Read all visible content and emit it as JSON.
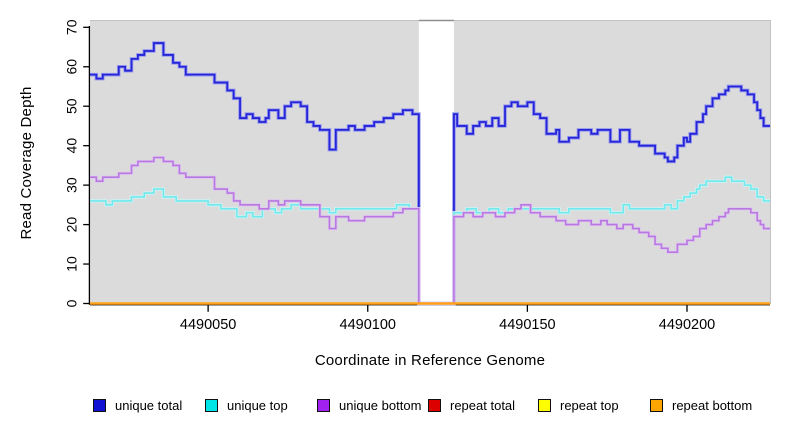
{
  "figure": {
    "x_title": "Coordinate in Reference Genome",
    "y_title": "Read Coverage Depth"
  },
  "legend": {
    "position": "bottom",
    "items": [
      {
        "label": "unique total",
        "color": "#1212D2"
      },
      {
        "label": "unique top",
        "color": "#00E5E5"
      },
      {
        "label": "unique bottom",
        "color": "#A121F0"
      },
      {
        "label": "repeat total",
        "color": "#DD0000"
      },
      {
        "label": "repeat top",
        "color": "#FFFF00"
      },
      {
        "label": "repeat bottom",
        "color": "#FFA500"
      }
    ]
  },
  "chart_data": {
    "type": "line",
    "subtype": "step",
    "title": "",
    "xlabel": "Coordinate in Reference Genome",
    "ylabel": "Read Coverage Depth",
    "xlim": [
      4490013,
      4490226
    ],
    "ylim": [
      0,
      70
    ],
    "x_ticks": [
      4490050,
      4490100,
      4490150,
      4490200
    ],
    "x_tick_labels": [
      "4490050",
      "4490100",
      "4490150",
      "4490200"
    ],
    "y_ticks": [
      0,
      10,
      20,
      30,
      40,
      50,
      60,
      70
    ],
    "y_tick_labels": [
      "0",
      "10",
      "20",
      "30",
      "40",
      "50",
      "60",
      "70"
    ],
    "plot_background": "#DBDBDB",
    "gap_region": {
      "from": 4490116,
      "to": 4490127,
      "color": "#FFFFFF"
    },
    "grid": false,
    "legend_position": "bottom",
    "series": [
      {
        "name": "unique total",
        "color": "#2525D8",
        "halo": "#9B9BEF",
        "width": 1.8,
        "halo_width": 3.6,
        "points": [
          [
            4490013,
            58
          ],
          [
            4490015,
            57
          ],
          [
            4490017,
            58
          ],
          [
            4490022,
            60
          ],
          [
            4490024,
            59
          ],
          [
            4490026,
            62
          ],
          [
            4490028,
            63
          ],
          [
            4490030,
            64
          ],
          [
            4490033,
            66
          ],
          [
            4490036,
            63
          ],
          [
            4490039,
            61
          ],
          [
            4490041,
            60
          ],
          [
            4490043,
            58
          ],
          [
            4490052,
            56
          ],
          [
            4490056,
            54
          ],
          [
            4490058,
            52
          ],
          [
            4490060,
            47
          ],
          [
            4490062,
            48
          ],
          [
            4490064,
            47
          ],
          [
            4490066,
            46
          ],
          [
            4490068,
            47
          ],
          [
            4490069,
            49
          ],
          [
            4490072,
            47
          ],
          [
            4490074,
            50
          ],
          [
            4490076,
            51
          ],
          [
            4490079,
            50
          ],
          [
            4490081,
            46
          ],
          [
            4490083,
            45
          ],
          [
            4490085,
            44
          ],
          [
            4490088,
            39
          ],
          [
            4490090,
            44
          ],
          [
            4490094,
            45
          ],
          [
            4490096,
            44
          ],
          [
            4490099,
            45
          ],
          [
            4490102,
            46
          ],
          [
            4490105,
            47
          ],
          [
            4490108,
            48
          ],
          [
            4490111,
            49
          ],
          [
            4490114,
            48
          ],
          [
            4490116,
            0
          ],
          [
            4490127,
            48
          ],
          [
            4490128,
            45
          ],
          [
            4490131,
            43
          ],
          [
            4490133,
            45
          ],
          [
            4490135,
            46
          ],
          [
            4490137,
            45
          ],
          [
            4490139,
            47
          ],
          [
            4490141,
            45
          ],
          [
            4490143,
            50
          ],
          [
            4490145,
            51
          ],
          [
            4490147,
            50
          ],
          [
            4490150,
            51
          ],
          [
            4490152,
            48
          ],
          [
            4490154,
            47
          ],
          [
            4490156,
            43
          ],
          [
            4490159,
            44
          ],
          [
            4490160,
            41
          ],
          [
            4490163,
            42
          ],
          [
            4490166,
            44
          ],
          [
            4490170,
            43
          ],
          [
            4490172,
            44
          ],
          [
            4490176,
            41
          ],
          [
            4490179,
            44
          ],
          [
            4490182,
            41
          ],
          [
            4490185,
            40
          ],
          [
            4490190,
            38
          ],
          [
            4490193,
            37
          ],
          [
            4490194,
            36
          ],
          [
            4490196,
            37
          ],
          [
            4490197,
            40
          ],
          [
            4490199,
            42
          ],
          [
            4490200,
            41
          ],
          [
            4490201,
            43
          ],
          [
            4490203,
            46
          ],
          [
            4490205,
            48
          ],
          [
            4490206,
            50
          ],
          [
            4490208,
            52
          ],
          [
            4490210,
            53
          ],
          [
            4490212,
            54
          ],
          [
            4490213,
            55
          ],
          [
            4490217,
            54
          ],
          [
            4490219,
            53
          ],
          [
            4490221,
            51
          ],
          [
            4490222,
            49
          ],
          [
            4490223,
            47
          ],
          [
            4490224,
            45
          ]
        ]
      },
      {
        "name": "unique top",
        "color": "#72E8EC",
        "halo": "#C9F6F6",
        "width": 1.6,
        "halo_width": 3.2,
        "points": [
          [
            4490013,
            26
          ],
          [
            4490018,
            25
          ],
          [
            4490020,
            26
          ],
          [
            4490026,
            27
          ],
          [
            4490030,
            28
          ],
          [
            4490033,
            29
          ],
          [
            4490036,
            27
          ],
          [
            4490040,
            26
          ],
          [
            4490050,
            25
          ],
          [
            4490054,
            24
          ],
          [
            4490059,
            22
          ],
          [
            4490062,
            23
          ],
          [
            4490064,
            22
          ],
          [
            4490067,
            24
          ],
          [
            4490071,
            23
          ],
          [
            4490073,
            24
          ],
          [
            4490076,
            25
          ],
          [
            4490079,
            24
          ],
          [
            4490088,
            23
          ],
          [
            4490090,
            24
          ],
          [
            4490109,
            25
          ],
          [
            4490113,
            24
          ],
          [
            4490116,
            0
          ],
          [
            4490127,
            23
          ],
          [
            4490131,
            24
          ],
          [
            4490134,
            23
          ],
          [
            4490138,
            24
          ],
          [
            4490141,
            23
          ],
          [
            4490144,
            24
          ],
          [
            4490157,
            24
          ],
          [
            4490160,
            23
          ],
          [
            4490163,
            24
          ],
          [
            4490176,
            23
          ],
          [
            4490180,
            25
          ],
          [
            4490182,
            24
          ],
          [
            4490193,
            25
          ],
          [
            4490195,
            24
          ],
          [
            4490197,
            26
          ],
          [
            4490199,
            27
          ],
          [
            4490201,
            28
          ],
          [
            4490203,
            29
          ],
          [
            4490204,
            30
          ],
          [
            4490206,
            31
          ],
          [
            4490212,
            32
          ],
          [
            4490214,
            31
          ],
          [
            4490218,
            30
          ],
          [
            4490220,
            29
          ],
          [
            4490222,
            27
          ],
          [
            4490224,
            26
          ]
        ]
      },
      {
        "name": "unique bottom",
        "color": "#B878DF",
        "halo": "#DFC6F2",
        "width": 1.6,
        "halo_width": 3.2,
        "points": [
          [
            4490013,
            32
          ],
          [
            4490015,
            31
          ],
          [
            4490017,
            32
          ],
          [
            4490022,
            33
          ],
          [
            4490026,
            35
          ],
          [
            4490028,
            36
          ],
          [
            4490033,
            37
          ],
          [
            4490036,
            36
          ],
          [
            4490039,
            35
          ],
          [
            4490041,
            33
          ],
          [
            4490043,
            32
          ],
          [
            4490052,
            29
          ],
          [
            4490056,
            28
          ],
          [
            4490058,
            26
          ],
          [
            4490060,
            25
          ],
          [
            4490066,
            24
          ],
          [
            4490069,
            26
          ],
          [
            4490072,
            25
          ],
          [
            4490074,
            26
          ],
          [
            4490079,
            25
          ],
          [
            4490085,
            22
          ],
          [
            4490088,
            19
          ],
          [
            4490090,
            22
          ],
          [
            4490094,
            21
          ],
          [
            4490099,
            22
          ],
          [
            4490105,
            22
          ],
          [
            4490108,
            23
          ],
          [
            4490111,
            24
          ],
          [
            4490116,
            0
          ],
          [
            4490127,
            22
          ],
          [
            4490130,
            23
          ],
          [
            4490133,
            22
          ],
          [
            4490136,
            23
          ],
          [
            4490140,
            22
          ],
          [
            4490143,
            23
          ],
          [
            4490146,
            24
          ],
          [
            4490148,
            25
          ],
          [
            4490151,
            23
          ],
          [
            4490154,
            22
          ],
          [
            4490159,
            21
          ],
          [
            4490162,
            20
          ],
          [
            4490166,
            21
          ],
          [
            4490170,
            20
          ],
          [
            4490173,
            21
          ],
          [
            4490175,
            20
          ],
          [
            4490178,
            19
          ],
          [
            4490180,
            20
          ],
          [
            4490183,
            19
          ],
          [
            4490185,
            18
          ],
          [
            4490188,
            17
          ],
          [
            4490190,
            15
          ],
          [
            4490192,
            14
          ],
          [
            4490194,
            13
          ],
          [
            4490197,
            15
          ],
          [
            4490200,
            16
          ],
          [
            4490202,
            17
          ],
          [
            4490204,
            19
          ],
          [
            4490206,
            20
          ],
          [
            4490208,
            21
          ],
          [
            4490210,
            22
          ],
          [
            4490212,
            23
          ],
          [
            4490213,
            24
          ],
          [
            4490220,
            23
          ],
          [
            4490222,
            21
          ],
          [
            4490223,
            20
          ],
          [
            4490224,
            19
          ]
        ]
      },
      {
        "name": "repeat total",
        "color": "#DD0000",
        "width": 2.0,
        "points": [
          [
            4490013,
            0
          ]
        ]
      },
      {
        "name": "repeat top",
        "color": "#F5E400",
        "width": 2.0,
        "points": [
          [
            4490013,
            0
          ]
        ]
      },
      {
        "name": "repeat bottom",
        "color": "#FFA118",
        "width": 2.4,
        "points": [
          [
            4490013,
            0
          ]
        ]
      }
    ]
  }
}
